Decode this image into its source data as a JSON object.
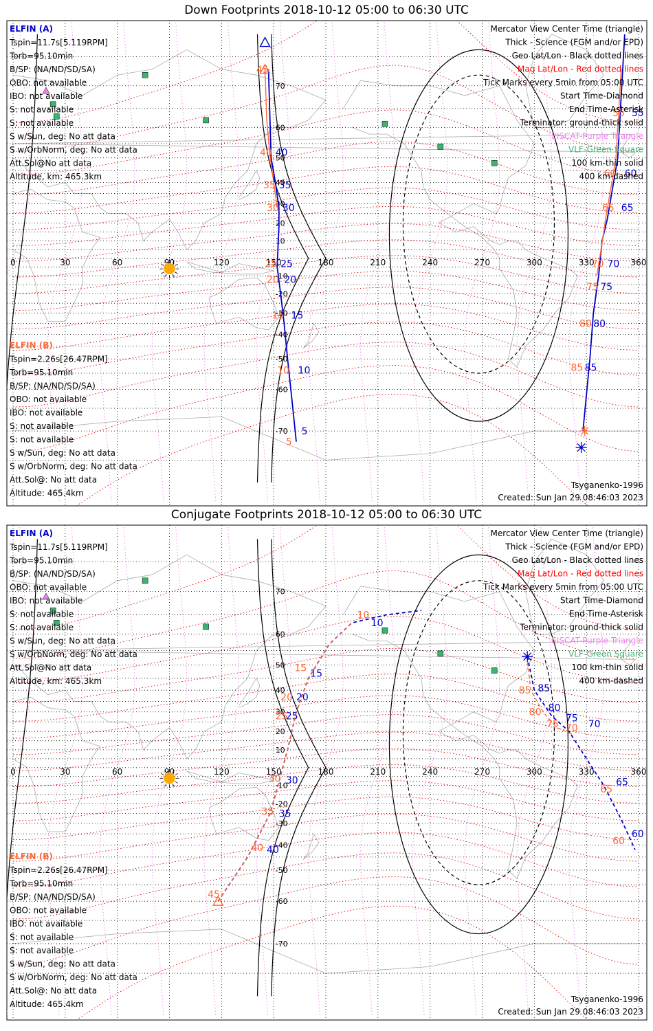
{
  "panels": [
    {
      "title": "Down Footprints 2018-10-12 05:00 to 06:30 UTC",
      "elfin_a": {
        "name": "ELFIN (A)",
        "lines": [
          "Tspin=11.7s[5.119RPM]",
          "Torb=95.10min",
          "B/SP: (NA/ND/SD/SA)",
          "OBO: not available",
          "IBO: not available",
          "S: not available",
          "S: not available",
          "S w/Sun, deg: No att data",
          "S w/OrbNorm, deg: No att data",
          "Att.Sol@No att data",
          "Altitude, km: 465.3km"
        ]
      },
      "elfin_b": {
        "name": "ELFIN (B)",
        "lines": [
          "Tspin=2.26s[26.47RPM]",
          "Torb=95.10min",
          "B/SP: (NA/ND/SD/SA)",
          "OBO: not available",
          "IBO: not available",
          "S: not available",
          "S: not available",
          "S w/Sun, deg: No att data",
          "S w/OrbNorm, deg: No att data",
          "Att.Sol@: No att data",
          "Altitude: 465.4km"
        ]
      },
      "footer_left": "Tsyganenko-1996",
      "footer_right": "Created: Sun Jan 29 08:46:03 2023"
    },
    {
      "title": "Conjugate Footprints 2018-10-12 05:00 to 06:30 UTC",
      "elfin_a": {
        "name": "ELFIN (A)",
        "lines": [
          "Tspin=11.7s[5.119RPM]",
          "Torb=95.10min",
          "B/SP: (NA/ND/SD/SA)",
          "OBO: not available",
          "IBO: not available",
          "S: not available",
          "S: not available",
          "S w/Sun, deg: No att data",
          "S w/OrbNorm, deg: No att data",
          "Att.Sol@No att data",
          "Altitude, km: 465.3km"
        ]
      },
      "elfin_b": {
        "name": "ELFIN (B)",
        "lines": [
          "Tspin=2.26s[26.47RPM]",
          "Torb=95.10min",
          "B/SP: (NA/ND/SD/SA)",
          "OBO: not available",
          "IBO: not available",
          "S: not available",
          "S: not available",
          "S w/Sun, deg: No att data",
          "S w/OrbNorm, deg: No att data",
          "Att.Sol@: No att data",
          "Altitude: 465.4km"
        ]
      },
      "footer_left": "Tsyganenko-1996",
      "footer_right": "Created: Sun Jan 29 08:46:03 2023"
    }
  ],
  "legend": [
    {
      "text": "Mercator View Center Time (triangle)",
      "color": "#000000"
    },
    {
      "text": "Thick - Science (FGM and/or EPD)",
      "color": "#000000"
    },
    {
      "text": "Geo Lat/Lon - Black dotted lines",
      "color": "#000000"
    },
    {
      "text": "Mag Lat/Lon - Red dotted lines",
      "color": "#ff0000"
    },
    {
      "text": "Tick Marks every 5min from 05:00 UTC",
      "color": "#000000"
    },
    {
      "text": "Start Time-Diamond",
      "color": "#000000"
    },
    {
      "text": "End Time-Asterisk",
      "color": "#000000"
    },
    {
      "text": "Terminator: ground-thick solid",
      "color": "#000000"
    },
    {
      "text": "EISCAT-Purple Triangle",
      "color": "#ee82ee"
    },
    {
      "text": "VLF-Green Square",
      "color": "#3cb371"
    },
    {
      "text": "100 km-thin solid",
      "color": "#000000"
    },
    {
      "text": "400 km-dashed",
      "color": "#000000"
    }
  ],
  "colors": {
    "elfin_a": "#0000cc",
    "elfin_b": "#ff6633",
    "mag_grid": "#dd0000",
    "eiscat": "#ee82ee",
    "vlf": "#3cb371",
    "sun": "#ffaa00",
    "coast": "#aaaaaa"
  },
  "chart_data": [
    {
      "type": "scatter",
      "projection": "mercator",
      "xlim": [
        0,
        360
      ],
      "x_ticks": [
        0,
        30,
        60,
        90,
        120,
        150,
        180,
        210,
        240,
        270,
        300,
        330,
        360
      ],
      "y_ticks": [
        70,
        60,
        50,
        40,
        30,
        20,
        10,
        -10,
        -20,
        -30,
        -40,
        -50,
        -60,
        -70
      ],
      "sun": {
        "lon": 90,
        "lat": -6
      },
      "vlf_sites": [
        {
          "lon": 76,
          "lat": 72
        },
        {
          "lon": 23,
          "lat": 66
        },
        {
          "lon": 25,
          "lat": 63
        },
        {
          "lon": 111,
          "lat": 62
        },
        {
          "lon": 214,
          "lat": 61
        },
        {
          "lon": 246,
          "lat": 54
        },
        {
          "lon": 277,
          "lat": 48
        }
      ],
      "eiscat_sites": [
        {
          "lon": 19,
          "lat": 69
        }
      ],
      "series": [
        {
          "name": "ELFIN (A)",
          "points": [
            [
              147,
              73
            ],
            [
              148,
              60
            ],
            [
              148.5,
              50
            ],
            [
              151,
              40
            ],
            [
              153,
              28
            ],
            [
              153,
              18
            ],
            [
              152,
              -5
            ],
            [
              154,
              -20
            ],
            [
              156,
              -35
            ],
            [
              158,
              -50
            ],
            [
              161,
              -65
            ],
            [
              163,
              -72
            ]
          ],
          "ticks": [
            {
              "label": "40",
              "lon": 151,
              "lat": 52
            },
            {
              "label": "35",
              "lon": 153,
              "lat": 39
            },
            {
              "label": "30",
              "lon": 155,
              "lat": 28
            },
            {
              "label": "25",
              "lon": 154,
              "lat": -3
            },
            {
              "label": "20",
              "lon": 156,
              "lat": -12
            },
            {
              "label": "15",
              "lon": 160,
              "lat": -31
            },
            {
              "label": "10",
              "lon": 164,
              "lat": -54
            },
            {
              "label": "5",
              "lon": 166,
              "lat": -70
            }
          ],
          "center": {
            "lon": 145,
            "lat": 77
          }
        },
        {
          "name": "ELFIN (B)",
          "points": [
            [
              145,
              73
            ],
            [
              146,
              62
            ],
            [
              148,
              50
            ],
            [
              150,
              40
            ],
            [
              152,
              28
            ]
          ],
          "ticks": [
            {
              "label": "45",
              "lon": 140,
              "lat": 73
            },
            {
              "label": "40",
              "lon": 142,
              "lat": 52
            },
            {
              "label": "35",
              "lon": 144,
              "lat": 39
            },
            {
              "label": "30",
              "lon": 146,
              "lat": 28
            },
            {
              "label": "25",
              "lon": 145,
              "lat": -3
            },
            {
              "label": "20",
              "lon": 146,
              "lat": -12
            },
            {
              "label": "15",
              "lon": 149,
              "lat": -31
            },
            {
              "label": "10",
              "lon": 152,
              "lat": -54
            },
            {
              "label": "5",
              "lon": 157,
              "lat": -72
            }
          ],
          "center": {
            "lon": 145,
            "lat": 73
          }
        },
        {
          "name": "ELFIN (A) evening",
          "points": [
            [
              352,
              78
            ],
            [
              348,
              50
            ],
            [
              342,
              22
            ],
            [
              339,
              10
            ],
            [
              337,
              -10
            ],
            [
              334,
              -30
            ],
            [
              332,
              -50
            ],
            [
              328,
              -70
            ]
          ],
          "ticks": [
            {
              "label": "55",
              "lon": 356,
              "lat": 64
            },
            {
              "label": "60",
              "lon": 352,
              "lat": 44
            },
            {
              "label": "65",
              "lon": 350,
              "lat": 28
            },
            {
              "label": "70",
              "lon": 342,
              "lat": -3
            },
            {
              "label": "75",
              "lon": 338,
              "lat": -16
            },
            {
              "label": "80",
              "lon": 334,
              "lat": -35
            },
            {
              "label": "85",
              "lon": 329,
              "lat": -53
            }
          ],
          "start": {
            "lon": 329,
            "lat": -70
          },
          "end": {
            "lon": 327,
            "lat": -73
          }
        },
        {
          "name": "ELFIN (B) evening",
          "points": [
            [
              350,
              73
            ],
            [
              347,
              50
            ],
            [
              341,
              22
            ],
            [
              340,
              15
            ],
            [
              336,
              -10
            ]
          ],
          "ticks": [
            {
              "label": "55",
              "lon": 345,
              "lat": 64
            },
            {
              "label": "60",
              "lon": 340,
              "lat": 44
            },
            {
              "label": "65",
              "lon": 339,
              "lat": 28
            },
            {
              "label": "70",
              "lon": 333,
              "lat": -3
            },
            {
              "label": "75",
              "lon": 330,
              "lat": -16
            },
            {
              "label": "80",
              "lon": 326,
              "lat": -35
            },
            {
              "label": "85",
              "lon": 321,
              "lat": -53
            }
          ]
        }
      ]
    },
    {
      "type": "scatter",
      "projection": "mercator",
      "xlim": [
        0,
        360
      ],
      "x_ticks": [
        0,
        30,
        60,
        90,
        120,
        150,
        180,
        210,
        240,
        270,
        300,
        330,
        360
      ],
      "y_ticks": [
        70,
        60,
        50,
        40,
        30,
        20,
        10,
        -10,
        -20,
        -30,
        -40,
        -50,
        -60,
        -70
      ],
      "sun": {
        "lon": 90,
        "lat": -6
      },
      "vlf_sites": [
        {
          "lon": 76,
          "lat": 72
        },
        {
          "lon": 23,
          "lat": 66
        },
        {
          "lon": 25,
          "lat": 63
        },
        {
          "lon": 111,
          "lat": 62
        },
        {
          "lon": 214,
          "lat": 61
        },
        {
          "lon": 246,
          "lat": 54
        },
        {
          "lon": 277,
          "lat": 48
        }
      ],
      "eiscat_sites": [
        {
          "lon": 19,
          "lat": 69
        }
      ],
      "series": [
        {
          "name": "ELFIN (A)",
          "points": [
            [
              118,
              -60
            ],
            [
              135,
              -45
            ],
            [
              148,
              -25
            ],
            [
              153,
              -8
            ],
            [
              158,
              10
            ],
            [
              163,
              30
            ],
            [
              170,
              45
            ],
            [
              182,
              57
            ],
            [
              195,
              63
            ],
            [
              215,
              65
            ],
            [
              235,
              66
            ]
          ],
          "ticks": [
            {
              "label": "10",
              "lon": 206,
              "lat": 63
            },
            {
              "label": "15",
              "lon": 171,
              "lat": 47
            },
            {
              "label": "20",
              "lon": 163,
              "lat": 37
            },
            {
              "label": "25",
              "lon": 157,
              "lat": 28
            },
            {
              "label": "30",
              "lon": 157,
              "lat": -7
            },
            {
              "label": "35",
              "lon": 153,
              "lat": -25
            },
            {
              "label": "40",
              "lon": 146,
              "lat": -42
            }
          ]
        },
        {
          "name": "ELFIN (B)",
          "points": [
            [
              118,
              -60
            ],
            [
              135,
              -45
            ],
            [
              148,
              -25
            ],
            [
              153,
              -8
            ],
            [
              158,
              10
            ],
            [
              163,
              30
            ],
            [
              170,
              45
            ],
            [
              182,
              57
            ],
            [
              195,
              63
            ]
          ],
          "ticks": [
            {
              "label": "45",
              "lon": 112,
              "lat": -58
            },
            {
              "label": "40",
              "lon": 137,
              "lat": -41
            },
            {
              "label": "35",
              "lon": 143,
              "lat": -24
            },
            {
              "label": "30",
              "lon": 147,
              "lat": -6
            },
            {
              "label": "25",
              "lon": 151,
              "lat": 28
            },
            {
              "label": "20",
              "lon": 154,
              "lat": 37
            },
            {
              "label": "15",
              "lon": 162,
              "lat": 49
            },
            {
              "label": "10",
              "lon": 198,
              "lat": 65
            }
          ],
          "center": {
            "lon": 118,
            "lat": -60
          }
        },
        {
          "name": "ELFIN (A) evening",
          "points": [
            [
              296,
              53
            ],
            [
              300,
              40
            ],
            [
              310,
              28
            ],
            [
              320,
              20
            ],
            [
              330,
              5
            ],
            [
              340,
              -10
            ],
            [
              350,
              -28
            ],
            [
              358,
              -42
            ]
          ],
          "ticks": [
            {
              "label": "85",
              "lon": 302,
              "lat": 41
            },
            {
              "label": "80",
              "lon": 308,
              "lat": 32
            },
            {
              "label": "75",
              "lon": 318,
              "lat": 27
            },
            {
              "label": "70",
              "lon": 331,
              "lat": 24
            },
            {
              "label": "65",
              "lon": 347,
              "lat": -8
            },
            {
              "label": "60",
              "lon": 356,
              "lat": -35
            }
          ],
          "end": {
            "lon": 296,
            "lat": 53
          }
        },
        {
          "name": "ELFIN (B) evening",
          "points": [
            [
              296,
              51
            ],
            [
              298,
              40
            ],
            [
              305,
              30
            ],
            [
              313,
              22
            ],
            [
              323,
              18
            ]
          ],
          "ticks": [
            {
              "label": "85",
              "lon": 291,
              "lat": 40
            },
            {
              "label": "80",
              "lon": 297,
              "lat": 30
            },
            {
              "label": "75",
              "lon": 307,
              "lat": 24
            },
            {
              "label": "70",
              "lon": 318,
              "lat": 22
            },
            {
              "label": "65",
              "lon": 338,
              "lat": -12
            },
            {
              "label": "60",
              "lon": 345,
              "lat": -38
            }
          ]
        }
      ]
    }
  ]
}
